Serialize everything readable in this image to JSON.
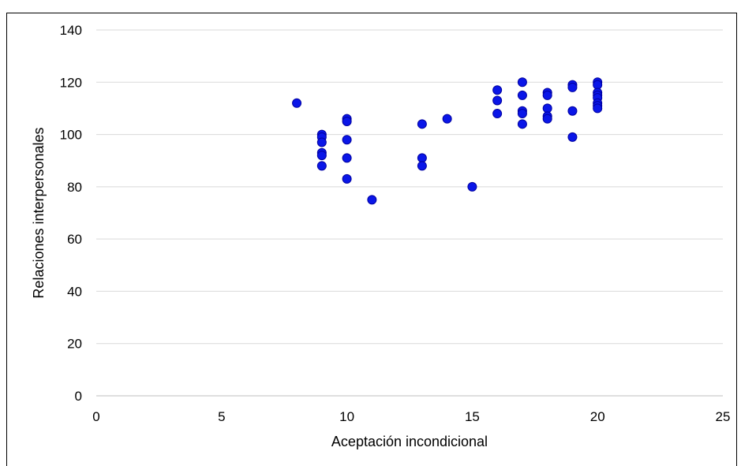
{
  "chart_data": {
    "type": "scatter",
    "title": "",
    "xlabel": "Aceptación incondicional",
    "ylabel": "Relaciones interpersonales",
    "xlim": [
      0,
      25
    ],
    "ylim": [
      0,
      140
    ],
    "xticks": [
      "0",
      "5",
      "10",
      "15",
      "20",
      "25"
    ],
    "yticks": [
      "0",
      "20",
      "40",
      "60",
      "80",
      "100",
      "120",
      "140"
    ],
    "grid": "horizontal",
    "legend": "none",
    "marker_color": "#0a16e8",
    "marker_edge": "#0000a0",
    "gridline_color": "#d9d9d9",
    "points": [
      {
        "x": 8,
        "y": 112
      },
      {
        "x": 9,
        "y": 100
      },
      {
        "x": 9,
        "y": 99
      },
      {
        "x": 9,
        "y": 97
      },
      {
        "x": 9,
        "y": 93
      },
      {
        "x": 9,
        "y": 92
      },
      {
        "x": 9,
        "y": 88
      },
      {
        "x": 10,
        "y": 106
      },
      {
        "x": 10,
        "y": 105
      },
      {
        "x": 10,
        "y": 98
      },
      {
        "x": 10,
        "y": 91
      },
      {
        "x": 10,
        "y": 83
      },
      {
        "x": 11,
        "y": 75
      },
      {
        "x": 13,
        "y": 104
      },
      {
        "x": 13,
        "y": 91
      },
      {
        "x": 13,
        "y": 88
      },
      {
        "x": 14,
        "y": 106
      },
      {
        "x": 15,
        "y": 80
      },
      {
        "x": 16,
        "y": 117
      },
      {
        "x": 16,
        "y": 113
      },
      {
        "x": 16,
        "y": 108
      },
      {
        "x": 17,
        "y": 120
      },
      {
        "x": 17,
        "y": 115
      },
      {
        "x": 17,
        "y": 109
      },
      {
        "x": 17,
        "y": 108
      },
      {
        "x": 17,
        "y": 104
      },
      {
        "x": 18,
        "y": 116
      },
      {
        "x": 18,
        "y": 115
      },
      {
        "x": 18,
        "y": 110
      },
      {
        "x": 18,
        "y": 107
      },
      {
        "x": 18,
        "y": 106
      },
      {
        "x": 19,
        "y": 119
      },
      {
        "x": 19,
        "y": 118
      },
      {
        "x": 19,
        "y": 109
      },
      {
        "x": 19,
        "y": 99
      },
      {
        "x": 20,
        "y": 120
      },
      {
        "x": 20,
        "y": 119
      },
      {
        "x": 20,
        "y": 116
      },
      {
        "x": 20,
        "y": 115
      },
      {
        "x": 20,
        "y": 114
      },
      {
        "x": 20,
        "y": 112
      },
      {
        "x": 20,
        "y": 111
      },
      {
        "x": 20,
        "y": 110
      }
    ]
  }
}
